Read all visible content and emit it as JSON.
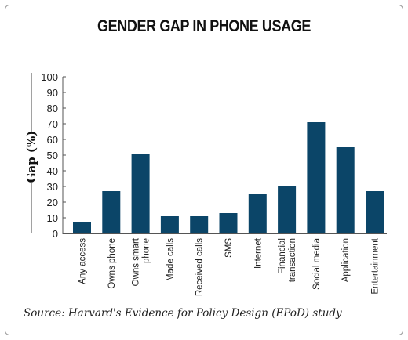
{
  "title": "GENDER GAP IN PHONE USAGE",
  "source": "Source: Harvard's Evidence for Policy Design (EPoD) study",
  "colors": {
    "bar": "#0b4568",
    "axis": "#555555"
  },
  "chart_data": {
    "type": "bar",
    "title": "GENDER GAP IN PHONE USAGE",
    "ylabel": "Gap (%)",
    "xlabel": "",
    "ylim": [
      0,
      100
    ],
    "yticks": [
      0,
      10,
      20,
      30,
      40,
      50,
      60,
      70,
      80,
      90,
      100
    ],
    "grid": false,
    "categories": [
      [
        "Any access"
      ],
      [
        "Owns phone"
      ],
      [
        "Owns smart",
        "phone"
      ],
      [
        "Made calls"
      ],
      [
        "Received calls"
      ],
      [
        "SMS"
      ],
      [
        "Internet"
      ],
      [
        "Financial",
        "transaction"
      ],
      [
        "Social media"
      ],
      [
        "Application"
      ],
      [
        "Entertainment"
      ]
    ],
    "values": [
      7,
      27,
      51,
      11,
      11,
      13,
      25,
      30,
      71,
      55,
      27
    ]
  }
}
